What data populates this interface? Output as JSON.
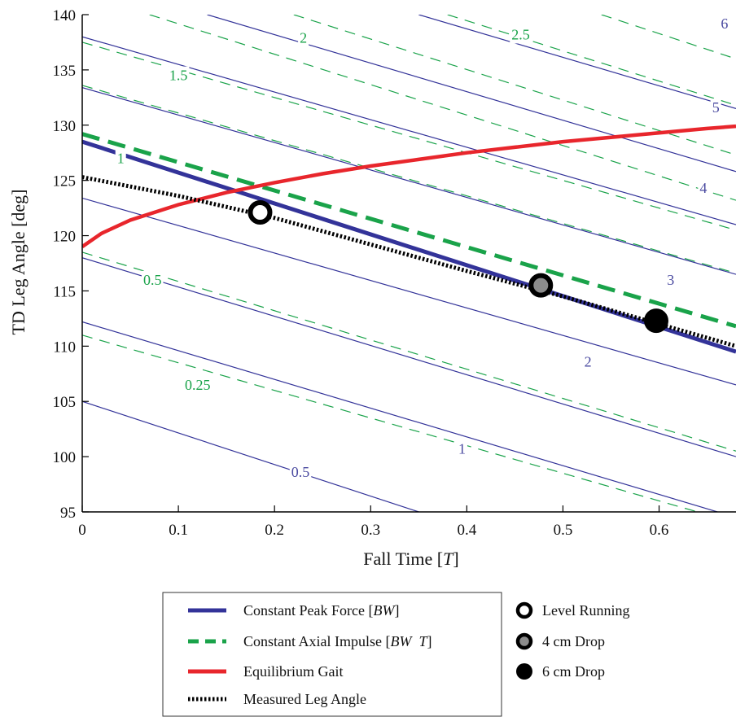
{
  "chart_data": {
    "type": "line",
    "xlabel": "Fall Time [T]",
    "xlabel_main": "Fall Time [",
    "xlabel_unit": "T",
    "xlabel_close": "]",
    "ylabel": "TD Leg Angle [deg]",
    "xlim": [
      0,
      0.68
    ],
    "ylim": [
      95,
      140
    ],
    "xticks": [
      0,
      0.1,
      0.2,
      0.3,
      0.4,
      0.5,
      0.6
    ],
    "xtick_labels": [
      "0",
      "0.1",
      "0.2",
      "0.3",
      "0.4",
      "0.5",
      "0.6"
    ],
    "yticks": [
      95,
      100,
      105,
      110,
      115,
      120,
      125,
      130,
      135,
      140
    ],
    "ytick_labels": [
      "95",
      "100",
      "105",
      "110",
      "115",
      "120",
      "125",
      "130",
      "135",
      "140"
    ],
    "grid": false,
    "legend_position": "bottom",
    "colors": {
      "peak_force": "#333399",
      "axial_impulse": "#1aa34a",
      "equilibrium": "#e8262c",
      "measured": "#000000",
      "drop4": "#8c8c8c"
    },
    "peak_force_contours": [
      {
        "label": "0.5",
        "x": [
          0,
          0.35
        ],
        "y": [
          105.0,
          95.0
        ]
      },
      {
        "label": "1",
        "x": [
          0,
          0.68
        ],
        "y": [
          112.2,
          94.5
        ]
      },
      {
        "label": "2",
        "x": [
          0,
          0.68
        ],
        "y": [
          118.0,
          100.0
        ]
      },
      {
        "label": "",
        "x": [
          0,
          0.68
        ],
        "y": [
          123.4,
          106.5
        ]
      },
      {
        "label": "3",
        "x": [
          0,
          0.68
        ],
        "y": [
          133.4,
          116.5
        ]
      },
      {
        "label": "4",
        "x": [
          0,
          0.68
        ],
        "y": [
          138.0,
          121.0
        ]
      },
      {
        "label": "5",
        "x": [
          0.13,
          0.68
        ],
        "y": [
          140.0,
          125.8
        ]
      },
      {
        "label": "6",
        "x": [
          0.35,
          0.68
        ],
        "y": [
          140.0,
          131.5
        ]
      }
    ],
    "axial_impulse_contours": [
      {
        "label": "0.25",
        "x": [
          0,
          0.68
        ],
        "y": [
          111.0,
          94.0
        ]
      },
      {
        "label": "0.5",
        "x": [
          0,
          0.68
        ],
        "y": [
          118.5,
          100.5
        ]
      },
      {
        "label": "1.5",
        "x": [
          0,
          0.68
        ],
        "y": [
          133.6,
          116.6
        ]
      },
      {
        "label": "2",
        "x": [
          0,
          0.68
        ],
        "y": [
          137.5,
          120.5
        ]
      },
      {
        "label": "",
        "x": [
          0.07,
          0.68
        ],
        "y": [
          140.0,
          123.2
        ]
      },
      {
        "label": "2.5",
        "x": [
          0.22,
          0.68
        ],
        "y": [
          140.0,
          127.3
        ]
      },
      {
        "label": "",
        "x": [
          0.38,
          0.68
        ],
        "y": [
          140.0,
          131.8
        ]
      },
      {
        "label": "",
        "x": [
          0.54,
          0.68
        ],
        "y": [
          140.0,
          136.0
        ]
      }
    ],
    "series": [
      {
        "name": "Constant Peak Force [BW]",
        "style": "solid-thick",
        "x": [
          0,
          0.68
        ],
        "y": [
          128.5,
          109.5
        ]
      },
      {
        "name": "Constant Axial Impulse [BW T]",
        "style": "dashed-thick",
        "label": "1",
        "x": [
          0,
          0.68
        ],
        "y": [
          129.2,
          111.8
        ]
      },
      {
        "name": "Equilibrium Gait",
        "style": "solid-red",
        "x": [
          0,
          0.02,
          0.05,
          0.1,
          0.15,
          0.2,
          0.25,
          0.3,
          0.35,
          0.4,
          0.45,
          0.5,
          0.55,
          0.6,
          0.65,
          0.68
        ],
        "y": [
          119.0,
          120.2,
          121.4,
          122.8,
          123.9,
          124.8,
          125.6,
          126.3,
          126.9,
          127.5,
          128.0,
          128.5,
          128.9,
          129.3,
          129.7,
          129.9
        ]
      },
      {
        "name": "Measured Leg Angle",
        "style": "dotted",
        "x": [
          0,
          0.1,
          0.2,
          0.3,
          0.4,
          0.5,
          0.6,
          0.68
        ],
        "y": [
          125.3,
          123.6,
          121.6,
          119.2,
          116.8,
          114.5,
          112.0,
          110.0
        ]
      }
    ],
    "markers": [
      {
        "name": "Level Running",
        "x": 0.185,
        "y": 122.1,
        "fill": "white"
      },
      {
        "name": "4 cm Drop",
        "x": 0.477,
        "y": 115.5,
        "fill": "gray"
      },
      {
        "name": "6 cm Drop",
        "x": 0.597,
        "y": 112.3,
        "fill": "black"
      }
    ],
    "peak_force_labels": [
      {
        "text": "0.5",
        "x": 0.227,
        "y": 98.6
      },
      {
        "text": "1",
        "x": 0.395,
        "y": 100.7
      },
      {
        "text": "2",
        "x": 0.526,
        "y": 108.6
      },
      {
        "text": "3",
        "x": 0.612,
        "y": 116.0
      },
      {
        "text": "4",
        "x": 0.646,
        "y": 124.3
      },
      {
        "text": "5",
        "x": 0.659,
        "y": 131.6
      },
      {
        "text": "6",
        "x": 0.668,
        "y": 139.2
      }
    ],
    "axial_impulse_labels": [
      {
        "text": "0.25",
        "x": 0.12,
        "y": 106.5
      },
      {
        "text": "0.5",
        "x": 0.073,
        "y": 116.0
      },
      {
        "text": "1",
        "x": 0.04,
        "y": 127.0
      },
      {
        "text": "1.5",
        "x": 0.1,
        "y": 134.5
      },
      {
        "text": "2",
        "x": 0.23,
        "y": 137.9
      },
      {
        "text": "2.5",
        "x": 0.456,
        "y": 138.2
      }
    ]
  },
  "legend": {
    "peak_force_main": "Constant Peak Force [",
    "peak_force_unit": "BW",
    "peak_force_close": "]",
    "impulse_main": "Constant Axial Impulse [",
    "impulse_unit": "BW  T",
    "impulse_close": "]",
    "equilibrium": "Equilibrium Gait",
    "measured": "Measured Leg Angle",
    "level": "Level Running",
    "drop4": "4 cm Drop",
    "drop6": "6 cm Drop"
  }
}
